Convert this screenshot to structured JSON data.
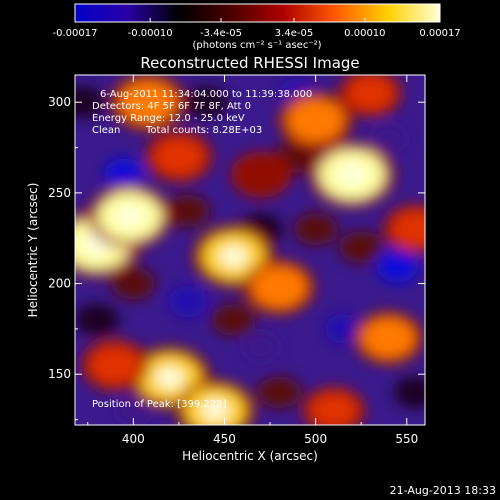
{
  "title": "Reconstructed RHESSI Image",
  "colorbar": {
    "ticks": [
      "-0.00017",
      "-0.00010",
      "-3.4e-05",
      "3.4e-05",
      "0.00010",
      "0.00017"
    ],
    "unit_label": "(photons cm⁻² s⁻¹ asec⁻²)",
    "colors": [
      "#0000c8",
      "#2a00a8",
      "#000000",
      "#4b0000",
      "#b00000",
      "#ff5a00",
      "#ffd000",
      "#ffffd8"
    ]
  },
  "overlay": {
    "time_range": "6-Aug-2011 11:34:04.000 to 11:39:38.000",
    "detectors": "Detectors: 4F 5F 6F 7F 8F, Att 0",
    "energy_range": "Energy Range: 12.0 - 25.0 keV",
    "clean_label": "Clean",
    "total_counts": "Total counts: 8.28E+03",
    "peak_position": "Position of Peak: [399,222]"
  },
  "footer": {
    "timestamp": "21-Aug-2013 18:33"
  },
  "chart_data": {
    "type": "heatmap",
    "title": "Reconstructed RHESSI Image",
    "xlabel": "Heliocentric X (arcsec)",
    "ylabel": "Heliocentric Y (arcsec)",
    "xlim": [
      368,
      560
    ],
    "ylim": [
      122,
      315
    ],
    "x_ticks": [
      400,
      450,
      500,
      550
    ],
    "y_ticks": [
      150,
      200,
      250,
      300
    ],
    "x_tick_labels": [
      "400",
      "450",
      "500",
      "550"
    ],
    "y_tick_labels": [
      "150",
      "200",
      "250",
      "300"
    ],
    "colorbar_range": [
      -0.00017,
      0.00017
    ],
    "peak": [
      399,
      222
    ],
    "bright_regions": [
      {
        "x": 380,
        "y": 222,
        "intensity": 1.0
      },
      {
        "x": 398,
        "y": 237,
        "intensity": 0.9
      },
      {
        "x": 408,
        "y": 300,
        "intensity": 0.7
      },
      {
        "x": 425,
        "y": 270,
        "intensity": 0.55
      },
      {
        "x": 455,
        "y": 215,
        "intensity": 0.85
      },
      {
        "x": 480,
        "y": 198,
        "intensity": 0.65
      },
      {
        "x": 500,
        "y": 290,
        "intensity": 0.7
      },
      {
        "x": 520,
        "y": 260,
        "intensity": 0.95
      },
      {
        "x": 540,
        "y": 170,
        "intensity": 0.6
      },
      {
        "x": 420,
        "y": 148,
        "intensity": 0.85
      },
      {
        "x": 445,
        "y": 130,
        "intensity": 0.8
      },
      {
        "x": 390,
        "y": 155,
        "intensity": 0.55
      },
      {
        "x": 510,
        "y": 130,
        "intensity": 0.45
      },
      {
        "x": 555,
        "y": 230,
        "intensity": 0.5
      },
      {
        "x": 470,
        "y": 260,
        "intensity": 0.4
      },
      {
        "x": 530,
        "y": 305,
        "intensity": 0.45
      }
    ],
    "dark_regions": [
      {
        "x": 395,
        "y": 260,
        "intensity": -0.8
      },
      {
        "x": 430,
        "y": 190,
        "intensity": -0.7
      },
      {
        "x": 490,
        "y": 305,
        "intensity": -0.6
      },
      {
        "x": 545,
        "y": 210,
        "intensity": -0.9
      },
      {
        "x": 470,
        "y": 165,
        "intensity": -0.55
      },
      {
        "x": 400,
        "y": 130,
        "intensity": -0.5
      },
      {
        "x": 515,
        "y": 175,
        "intensity": -0.6
      },
      {
        "x": 540,
        "y": 280,
        "intensity": -0.5
      }
    ]
  }
}
